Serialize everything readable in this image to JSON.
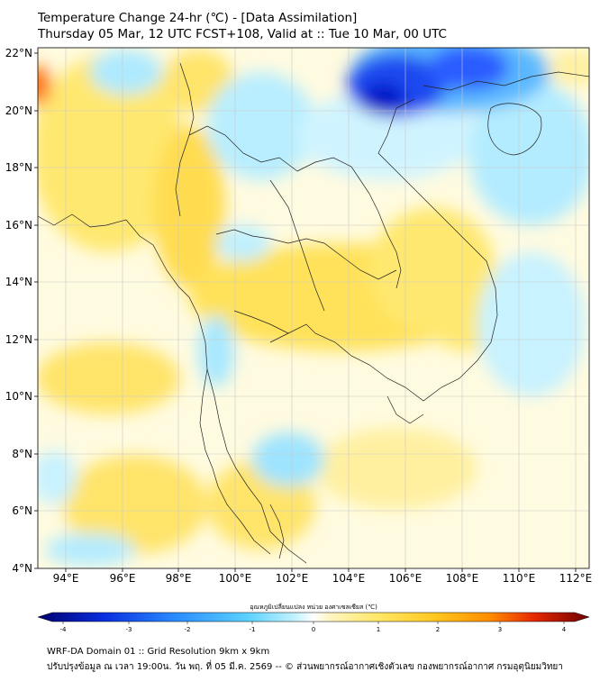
{
  "header": {
    "title_line1": "Temperature Change 24-hr (℃) - [Data Assimilation]",
    "title_line2": "Thursday 05 Mar, 12 UTC FCST+108, Valid at :: Tue 10 Mar, 00 UTC"
  },
  "map": {
    "lat_range": [
      4,
      22
    ],
    "lon_range": [
      93,
      112.3
    ],
    "lat_ticks": [
      "4°N",
      "6°N",
      "8°N",
      "10°N",
      "12°N",
      "14°N",
      "16°N",
      "18°N",
      "20°N",
      "22°N"
    ],
    "lat_values": [
      4,
      6,
      8,
      10,
      12,
      14,
      16,
      18,
      20,
      22
    ],
    "lon_ticks": [
      "94°E",
      "96°E",
      "98°E",
      "100°E",
      "102°E",
      "104°E",
      "106°E",
      "108°E",
      "110°E",
      "112°E"
    ],
    "lon_values": [
      94,
      96,
      98,
      100,
      102,
      104,
      106,
      108,
      110,
      112
    ]
  },
  "colorbar": {
    "label": "อุณหภูมิเปลี่ยนแปลง หน่วย องศาเซลเซียส (℃)",
    "ticks": [
      "-4",
      "-3",
      "-2",
      "-1",
      "0",
      "1",
      "2",
      "3",
      "4"
    ],
    "tick_values": [
      -4,
      -3,
      -2,
      -1,
      0,
      1,
      2,
      3,
      4
    ],
    "colors": [
      "#00006e",
      "#0000c8",
      "#0a3cf0",
      "#2a78ff",
      "#3cb4ff",
      "#64dcff",
      "#b4f0ff",
      "#ffffff",
      "#fff5b4",
      "#ffe664",
      "#ffd228",
      "#ffb400",
      "#ff7800",
      "#e61e00",
      "#a00000",
      "#6e0000"
    ]
  },
  "footer": {
    "line1": "WRF-DA Domain 01 :: Grid Resolution 9km x 9km",
    "line2": "ปรับปรุงข้อมูล ณ เวลา 19:00น. วัน พฤ. ที่ 05 มี.ค. 2569 -- © ส่วนพยากรณ์อากาศเชิงตัวเลข กองพยากรณ์อากาศ กรมอุตุนิยมวิทยา"
  }
}
